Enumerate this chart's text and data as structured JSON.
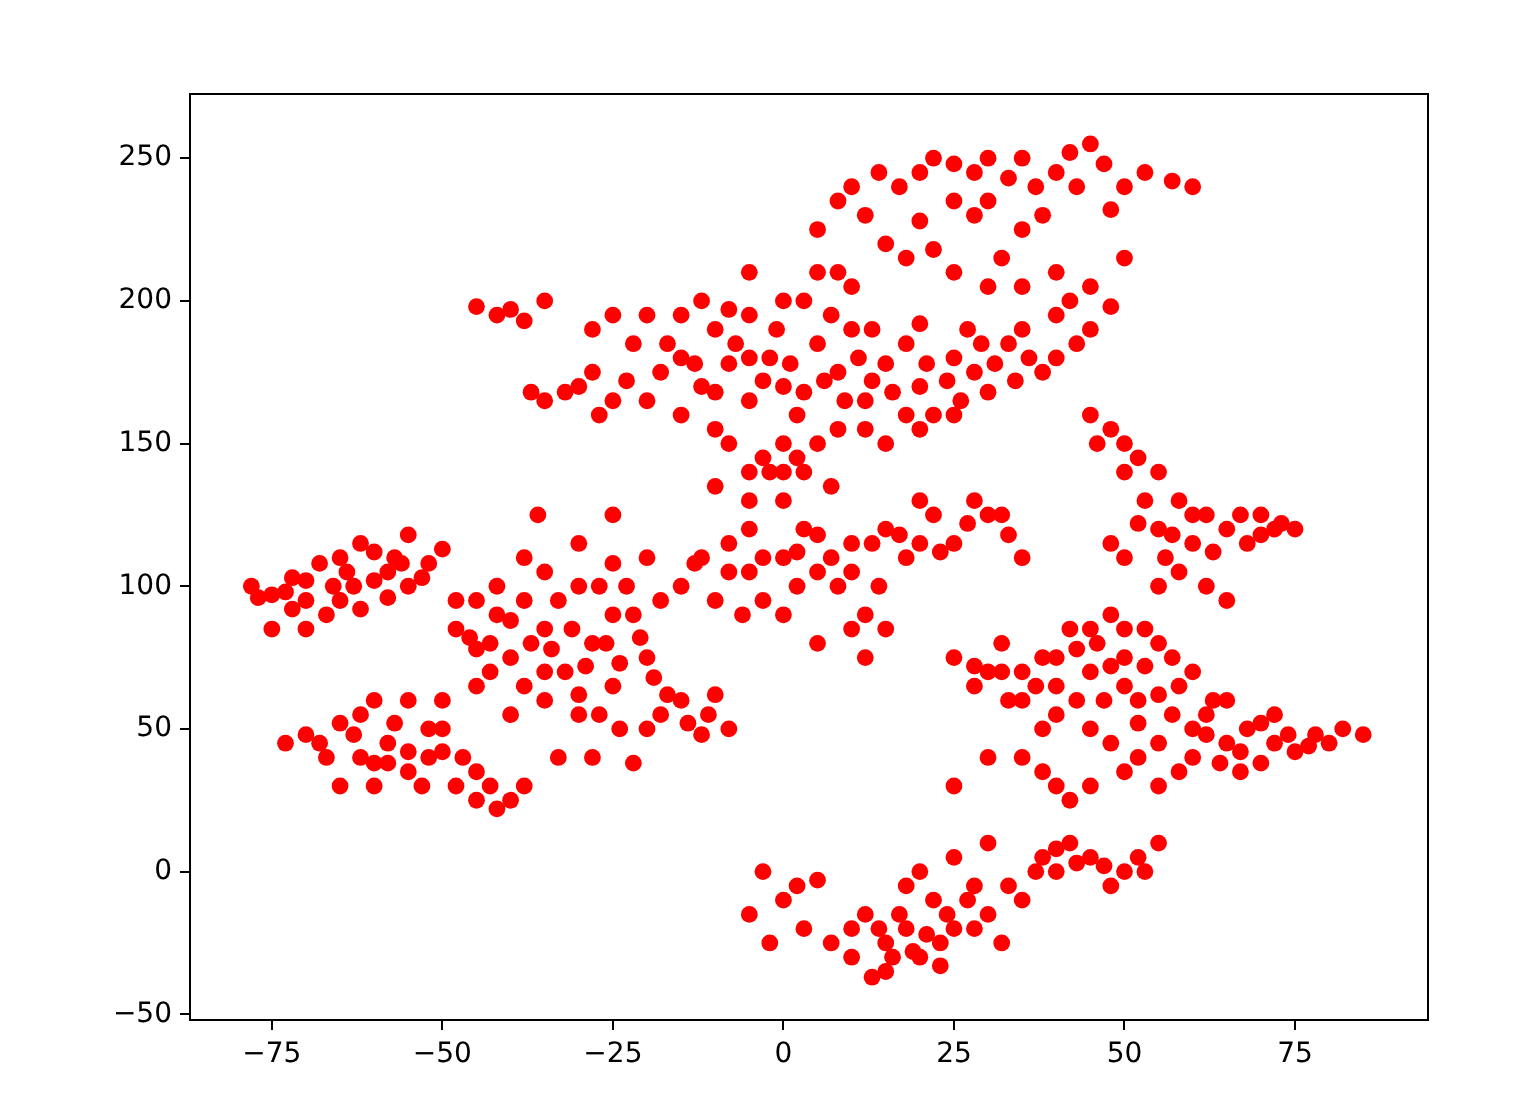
{
  "chart_data": {
    "type": "scatter",
    "color": "#ff0000",
    "marker": "circle",
    "x": [
      -78,
      -75,
      -72,
      -70,
      -68,
      -65,
      -63,
      -60,
      -58,
      -55,
      -52,
      -50,
      -62,
      -67,
      -75,
      -70,
      -62,
      -55,
      -73,
      -70,
      -65,
      -62,
      -60,
      -58,
      -55,
      -52,
      -50,
      -48,
      -45,
      -42,
      -40,
      -38,
      -55,
      -60,
      -65,
      -50,
      -48,
      -45,
      -42,
      -40,
      -38,
      -35,
      -32,
      -30,
      -28,
      -25,
      -22,
      -20,
      -18,
      -15,
      -12,
      -10,
      -8,
      -35,
      -30,
      -28,
      -22,
      -33,
      -40,
      -45,
      -38,
      -30,
      -25,
      -20,
      -15,
      -10,
      -5,
      -42,
      -48,
      -36,
      -25,
      -12,
      -8,
      -5,
      0,
      0,
      3,
      5,
      8,
      10,
      12,
      15,
      18,
      20,
      22,
      25,
      28,
      30,
      33,
      35,
      -2,
      3,
      7,
      10,
      15,
      5,
      0,
      -3,
      -10,
      -5,
      12,
      -45,
      -42,
      -38,
      -35,
      -35,
      -30,
      -28,
      -25,
      -22,
      -20,
      -18,
      -15,
      -12,
      -10,
      -8,
      -5,
      -5,
      -2,
      0,
      2,
      5,
      8,
      10,
      12,
      15,
      18,
      20,
      22,
      25,
      28,
      30,
      33,
      35,
      38,
      40,
      42,
      45,
      48,
      -8,
      -3,
      0,
      5,
      15,
      20,
      10,
      5,
      -5,
      3,
      5,
      8,
      10,
      12,
      15,
      18,
      20,
      22,
      25,
      28,
      30,
      35,
      40,
      42,
      45,
      47,
      50,
      53,
      57,
      60,
      38,
      35,
      32,
      28,
      25,
      40,
      45,
      30,
      25,
      45,
      48,
      50,
      52,
      55,
      53,
      55,
      58,
      60,
      62,
      65,
      68,
      70,
      72,
      75,
      58,
      62,
      65,
      55,
      50,
      48,
      25,
      28,
      30,
      32,
      35,
      38,
      40,
      42,
      45,
      48,
      50,
      52,
      55,
      58,
      60,
      45,
      48,
      50,
      52,
      55,
      58,
      60,
      35,
      38,
      40,
      42,
      45,
      30,
      25,
      62,
      65,
      68,
      70,
      72,
      75,
      78,
      80,
      82,
      85,
      67,
      72,
      65,
      60,
      55,
      -5,
      -3,
      -2,
      0,
      2,
      3,
      5,
      7,
      10,
      12,
      15,
      18,
      20,
      15,
      22,
      25,
      25,
      28,
      30,
      32,
      35,
      30,
      38,
      40,
      42,
      45,
      48,
      50,
      52,
      55,
      20,
      18,
      23,
      10,
      13,
      -32,
      -27,
      -23,
      -20,
      -17,
      -13,
      -10,
      -7,
      -3,
      -1,
      1,
      3,
      6,
      9,
      11,
      13,
      16,
      18,
      21,
      24,
      26,
      29,
      31,
      34,
      36,
      40,
      43,
      -15,
      -12,
      -8,
      0,
      7,
      13,
      20,
      27,
      -40,
      -28,
      -25,
      -37,
      -5,
      -15,
      -10,
      2,
      8,
      12,
      25,
      -5,
      0,
      14,
      17,
      33,
      37,
      43,
      48,
      50,
      35,
      22,
      20,
      8,
      30,
      -73,
      -70,
      -66,
      -64,
      -60,
      -57,
      -53,
      -58,
      -65,
      -72,
      -77,
      -56,
      -68,
      -63,
      -60,
      -57,
      -55,
      -53,
      -58,
      -52,
      -47,
      -45,
      -62,
      -67,
      -50,
      -43,
      -46,
      -43,
      -40,
      -37,
      -34,
      -31,
      -29,
      -26,
      -24,
      -21,
      -19,
      -17,
      -14,
      -11,
      -27,
      -24,
      -20,
      -38,
      -33,
      -27,
      -23,
      -18,
      -13,
      -43,
      -30,
      -35,
      -25,
      -45,
      -35,
      -8,
      -3,
      2,
      5,
      7,
      10,
      13,
      17,
      20,
      23,
      27,
      32,
      14,
      -6,
      2,
      57,
      63,
      67,
      70,
      73,
      60,
      52,
      56,
      50,
      46,
      32,
      35,
      37,
      40,
      43,
      46,
      48,
      50,
      53,
      55,
      57,
      53,
      50,
      43,
      47,
      40,
      52,
      57,
      38,
      33,
      28,
      45,
      63,
      62,
      67,
      70,
      74,
      77,
      64,
      17,
      21,
      24,
      27,
      23,
      19,
      14,
      33,
      37,
      43,
      47,
      40,
      53,
      16,
      28
    ],
    "values": [
      100,
      97,
      103,
      95,
      108,
      110,
      100,
      112,
      105,
      100,
      108,
      113,
      92,
      90,
      85,
      85,
      115,
      118,
      45,
      48,
      52,
      40,
      30,
      45,
      35,
      50,
      42,
      30,
      25,
      22,
      25,
      30,
      60,
      60,
      30,
      60,
      85,
      78,
      90,
      75,
      95,
      85,
      70,
      100,
      80,
      65,
      90,
      75,
      55,
      60,
      48,
      62,
      50,
      60,
      55,
      40,
      38,
      40,
      55,
      65,
      110,
      115,
      108,
      110,
      100,
      95,
      105,
      100,
      95,
      125,
      125,
      110,
      115,
      120,
      110,
      130,
      120,
      105,
      100,
      115,
      90,
      120,
      110,
      130,
      125,
      115,
      130,
      125,
      118,
      110,
      140,
      140,
      135,
      85,
      85,
      80,
      90,
      95,
      135,
      140,
      75,
      198,
      195,
      193,
      200,
      165,
      170,
      175,
      165,
      185,
      195,
      175,
      180,
      170,
      190,
      178,
      165,
      195,
      180,
      170,
      160,
      185,
      175,
      190,
      165,
      178,
      185,
      170,
      160,
      180,
      175,
      168,
      185,
      190,
      175,
      195,
      200,
      190,
      198,
      150,
      145,
      150,
      150,
      150,
      155,
      205,
      210,
      210,
      200,
      225,
      235,
      240,
      230,
      220,
      215,
      245,
      250,
      248,
      245,
      250,
      250,
      245,
      252,
      255,
      248,
      240,
      245,
      242,
      240,
      230,
      225,
      215,
      230,
      235,
      210,
      205,
      205,
      210,
      160,
      155,
      150,
      145,
      140,
      130,
      120,
      130,
      115,
      125,
      120,
      115,
      125,
      120,
      120,
      105,
      100,
      95,
      100,
      110,
      115,
      75,
      65,
      70,
      80,
      60,
      75,
      65,
      85,
      70,
      90,
      75,
      60,
      80,
      65,
      70,
      50,
      45,
      35,
      40,
      45,
      35,
      50,
      40,
      35,
      30,
      25,
      30,
      40,
      30,
      55,
      45,
      50,
      38,
      45,
      42,
      48,
      45,
      50,
      48,
      35,
      55,
      60,
      40,
      30,
      -15,
      0,
      -25,
      -10,
      -5,
      -20,
      -3,
      -25,
      -20,
      -15,
      -25,
      -20,
      -30,
      -35,
      -10,
      -20,
      5,
      -5,
      -15,
      -25,
      -10,
      10,
      5,
      0,
      10,
      5,
      -5,
      0,
      5,
      10,
      0,
      -5,
      -33,
      -30,
      -37,
      168,
      160,
      172,
      165,
      185,
      178,
      168,
      185,
      172,
      190,
      178,
      168,
      172,
      165,
      180,
      172,
      168,
      160,
      178,
      172,
      165,
      185,
      178,
      172,
      180,
      180,
      185,
      195,
      200,
      197,
      200,
      195,
      190,
      192,
      190,
      197,
      190,
      195,
      168,
      180,
      160,
      155,
      145,
      155,
      155,
      160,
      130,
      140,
      245,
      240,
      243,
      240,
      240,
      232,
      215,
      205,
      218,
      228,
      210,
      235,
      98,
      102,
      100,
      105,
      102,
      110,
      103,
      96,
      95,
      92,
      96,
      108,
      45,
      48,
      38,
      52,
      42,
      30,
      38,
      40,
      40,
      35,
      55,
      40,
      50,
      30,
      82,
      80,
      88,
      80,
      78,
      85,
      72,
      80,
      73,
      82,
      68,
      62,
      52,
      55,
      55,
      50,
      50,
      65,
      95,
      100,
      100,
      95,
      108,
      70,
      62,
      70,
      90,
      95,
      105,
      105,
      110,
      112,
      118,
      110,
      105,
      115,
      118,
      115,
      112,
      122,
      125,
      100,
      90,
      100,
      118,
      112,
      125,
      118,
      122,
      125,
      122,
      110,
      140,
      150,
      70,
      70,
      65,
      75,
      78,
      80,
      72,
      65,
      72,
      62,
      75,
      85,
      85,
      60,
      60,
      55,
      52,
      55,
      50,
      60,
      72,
      85,
      60,
      48,
      42,
      52,
      48,
      44,
      38,
      -15,
      -22,
      -15,
      -10,
      -25,
      -28,
      -20,
      -5,
      0,
      3,
      2,
      8,
      0,
      -30,
      -20
    ],
    "xlim": [
      -87,
      94.5
    ],
    "ylim": [
      -52,
      272.5
    ],
    "xticks": [
      -75,
      -50,
      -25,
      0,
      25,
      50,
      75
    ],
    "yticks": [
      -50,
      0,
      50,
      100,
      150,
      200,
      250
    ]
  }
}
